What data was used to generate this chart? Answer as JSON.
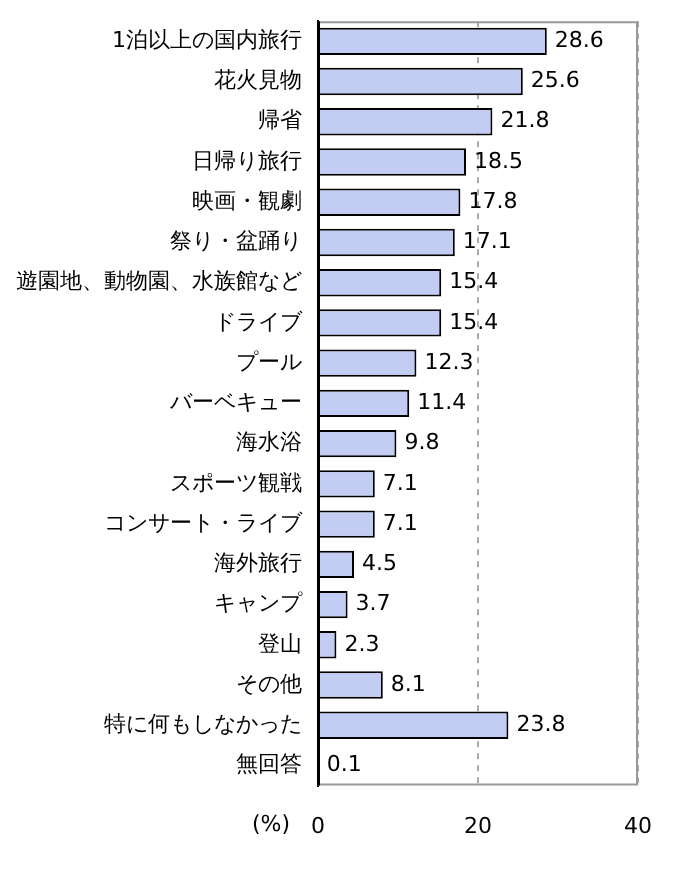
{
  "chart_data": {
    "type": "bar",
    "orientation": "horizontal",
    "xlabel": "(%)",
    "categories": [
      "1泊以上の国内旅行",
      "花火見物",
      "帰省",
      "日帰り旅行",
      "映画・観劇",
      "祭り・盆踊り",
      "遊園地、動物園、水族館など",
      "ドライブ",
      "プール",
      "バーベキュー",
      "海水浴",
      "スポーツ観戦",
      "コンサート・ライブ",
      "海外旅行",
      "キャンプ",
      "登山",
      "その他",
      "特に何もしなかった",
      "無回答"
    ],
    "values": [
      28.6,
      25.6,
      21.8,
      18.5,
      17.8,
      17.1,
      15.4,
      15.4,
      12.3,
      11.4,
      9.8,
      7.1,
      7.1,
      4.5,
      3.7,
      2.3,
      8.1,
      23.8,
      0.1
    ],
    "color": "#c3cdf4",
    "xlim": [
      0,
      40
    ],
    "xticks": [
      0,
      20,
      40
    ],
    "grid": "x",
    "data_labels": true,
    "legend": false
  }
}
